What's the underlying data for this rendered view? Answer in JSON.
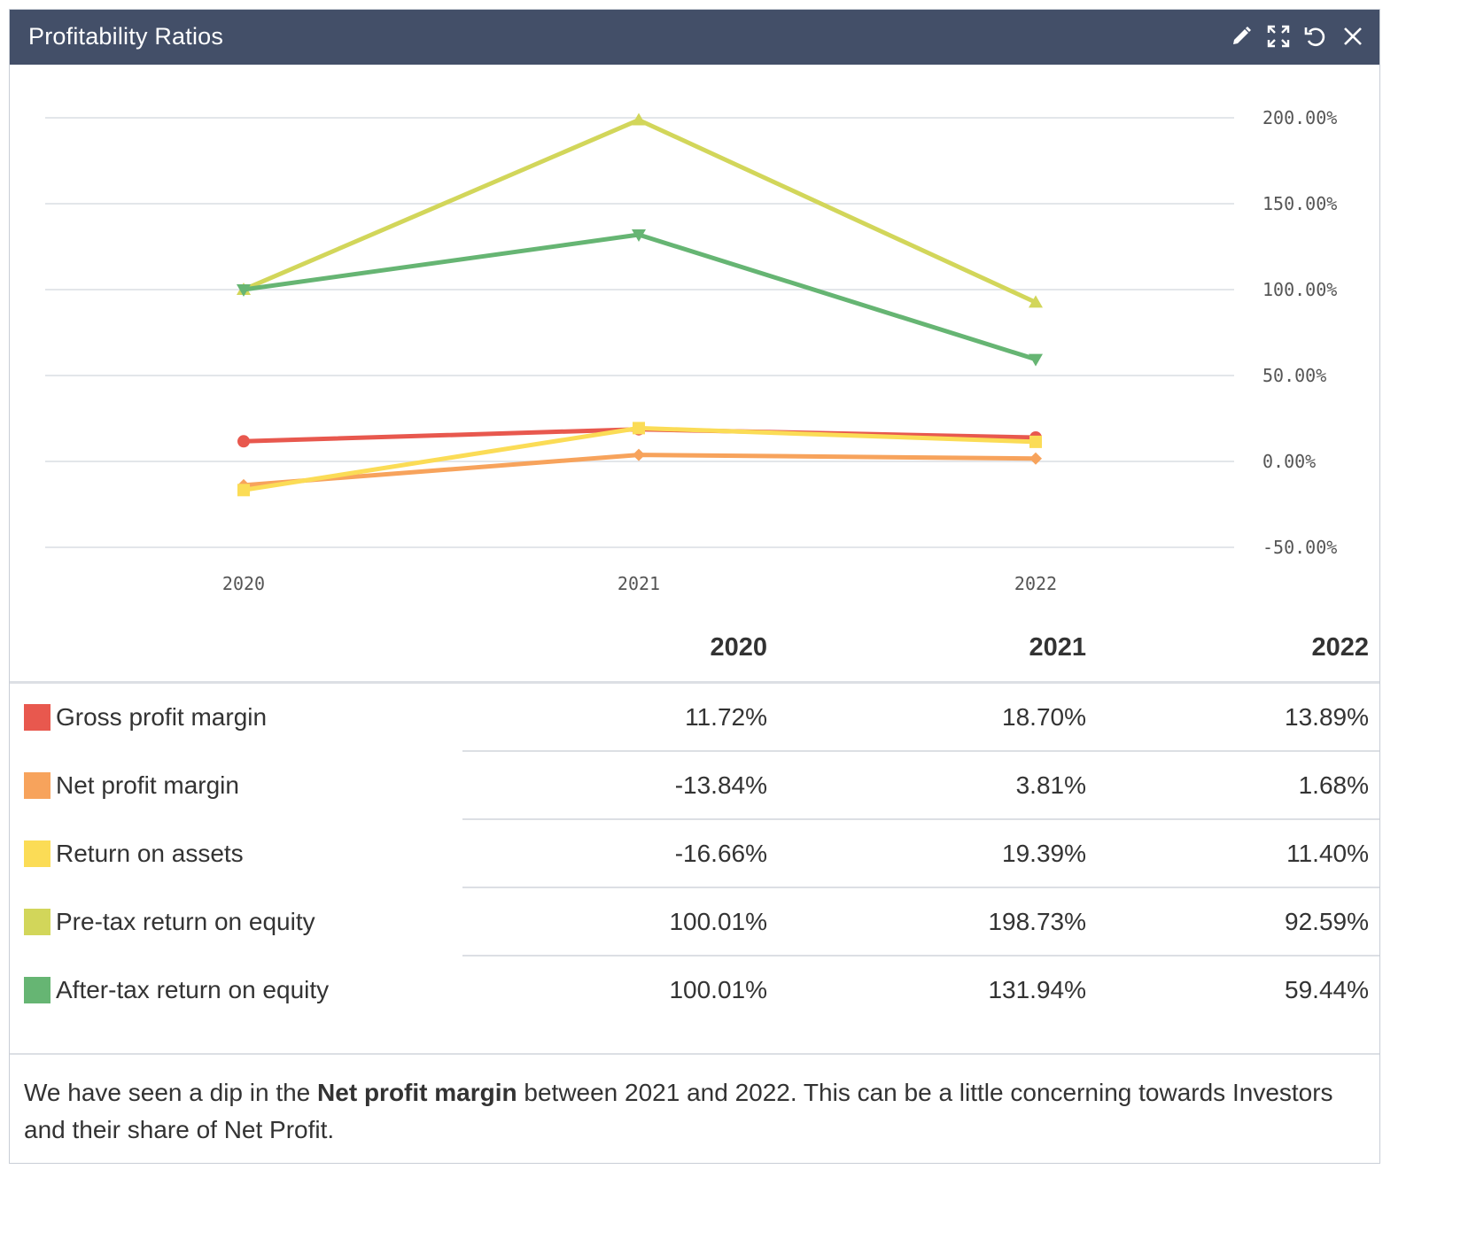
{
  "widget": {
    "title": "Profitability Ratios",
    "tools": [
      {
        "name": "edit-icon"
      },
      {
        "name": "expand-icon"
      },
      {
        "name": "refresh-icon"
      },
      {
        "name": "close-icon"
      }
    ]
  },
  "chart_data": {
    "type": "line",
    "categories": [
      "2020",
      "2021",
      "2022"
    ],
    "y_ticks": [
      "200.00%",
      "150.00%",
      "100.00%",
      "50.00%",
      "0.00%",
      "-50.00%"
    ],
    "ylim": [
      -50,
      200
    ],
    "grid": true,
    "series": [
      {
        "name": "Gross profit margin",
        "color": "#e8584e",
        "marker": "circle",
        "values": [
          11.72,
          18.7,
          13.89
        ]
      },
      {
        "name": "Net profit margin",
        "color": "#f7a35c",
        "marker": "diamond",
        "values": [
          -13.84,
          3.81,
          1.68
        ]
      },
      {
        "name": "Return on assets",
        "color": "#fbdc56",
        "marker": "square",
        "values": [
          -16.66,
          19.39,
          11.4
        ]
      },
      {
        "name": "Pre-tax return on equity",
        "color": "#d2d65a",
        "marker": "triangle",
        "values": [
          100.01,
          198.73,
          92.59
        ]
      },
      {
        "name": "After-tax return on equity",
        "color": "#66b573",
        "marker": "triangle-down",
        "values": [
          100.01,
          131.94,
          59.44
        ]
      }
    ]
  },
  "table": {
    "headers": [
      "2020",
      "2021",
      "2022"
    ],
    "rows": [
      {
        "label": "Gross profit margin",
        "color": "#e8584e",
        "values": [
          "11.72%",
          "18.70%",
          "13.89%"
        ]
      },
      {
        "label": "Net profit margin",
        "color": "#f7a35c",
        "values": [
          "-13.84%",
          "3.81%",
          "1.68%"
        ]
      },
      {
        "label": "Return on assets",
        "color": "#fbdc56",
        "values": [
          "-16.66%",
          "19.39%",
          "11.40%"
        ]
      },
      {
        "label": "Pre-tax return on equity",
        "color": "#d2d65a",
        "values": [
          "100.01%",
          "198.73%",
          "92.59%"
        ]
      },
      {
        "label": "After-tax return on equity",
        "color": "#66b573",
        "values": [
          "100.01%",
          "131.94%",
          "59.44%"
        ]
      }
    ]
  },
  "note": {
    "before": "We have seen a dip in the ",
    "highlight": "Net profit margin",
    "after": " between 2021 and 2022. This can be a little concerning towards Investors and their share of Net Profit."
  }
}
